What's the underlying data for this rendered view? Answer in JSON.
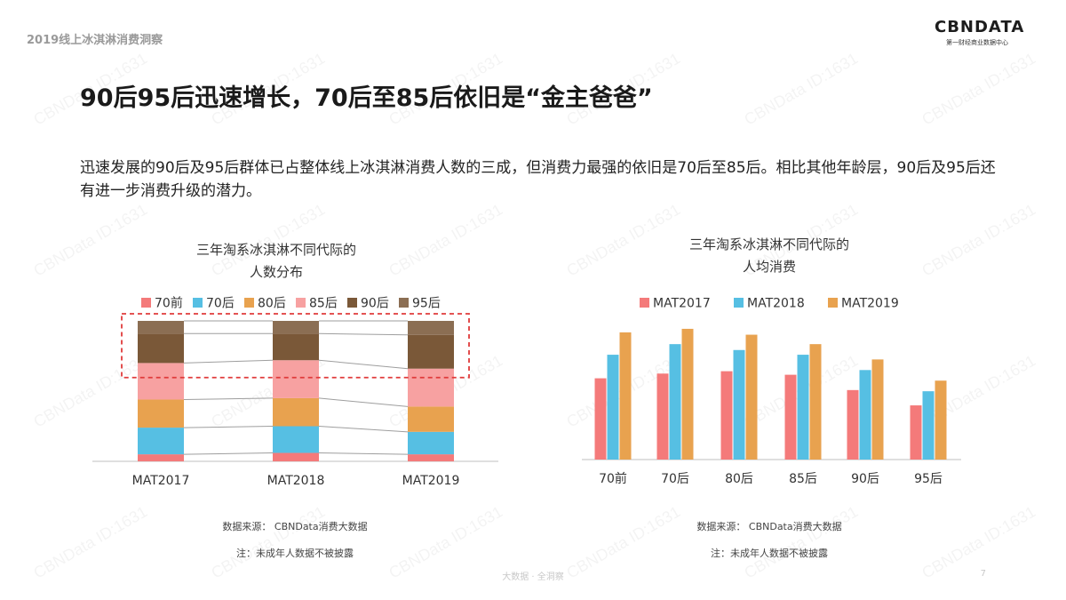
{
  "header": {
    "report_title": "2019线上冰淇淋消费洞察",
    "logo_main": "CBNDATA",
    "logo_sub": "第一财经商业数据中心"
  },
  "headline": "90后95后迅速增长，70后至85后依旧是“金主爸爸”",
  "description": "迅速发展的90后及95后群体已占整体线上冰淇淋消费人数的三成，但消费力最强的依旧是70后至85后。相比其他年龄层，90后及95后还有进一步消费升级的潜力。",
  "watermark_text": "CBNData ID:1631",
  "footer": {
    "center": "大数据 · 全洞察",
    "page": "7"
  },
  "chart_data": [
    {
      "type": "bar",
      "stacked": true,
      "title_line1": "三年淘系冰淇淋不同代际的",
      "title_line2": "人数分布",
      "categories": [
        "MAT2017",
        "MAT2018",
        "MAT2019"
      ],
      "series": [
        {
          "name": "70前",
          "color": "#f47a7a",
          "values": [
            5,
            6,
            5
          ]
        },
        {
          "name": "70后",
          "color": "#56bfe3",
          "values": [
            19,
            19,
            16
          ]
        },
        {
          "name": "80后",
          "color": "#e8a24f",
          "values": [
            20,
            20,
            18
          ]
        },
        {
          "name": "85后",
          "color": "#f7a1a1",
          "values": [
            26,
            27,
            27
          ]
        },
        {
          "name": "90后",
          "color": "#7a5838",
          "values": [
            21,
            19,
            24
          ]
        },
        {
          "name": "95后",
          "color": "#8b6e53",
          "values": [
            9,
            9,
            10
          ]
        }
      ],
      "ylim": [
        0,
        100
      ],
      "highlight_color": "#e03b3b",
      "source_note": "数据来源： CBNData消费大数据",
      "footnote": "注：未成年人数据不被披露"
    },
    {
      "type": "bar",
      "title_line1": "三年淘系冰淇淋不同代际的",
      "title_line2": "人均消费",
      "categories": [
        "70前",
        "70后",
        "80后",
        "85后",
        "90后",
        "95后"
      ],
      "series": [
        {
          "name": "MAT2017",
          "color": "#f47a7a",
          "values": [
            69,
            73,
            75,
            72,
            59,
            46
          ]
        },
        {
          "name": "MAT2018",
          "color": "#56bfe3",
          "values": [
            89,
            98,
            93,
            89,
            76,
            58
          ]
        },
        {
          "name": "MAT2019",
          "color": "#e8a24f",
          "values": [
            108,
            111,
            106,
            98,
            85,
            67
          ]
        }
      ],
      "ylim": [
        0,
        120
      ],
      "source_note": "数据来源： CBNData消费大数据",
      "footnote": "注：未成年人数据不被披露"
    }
  ]
}
